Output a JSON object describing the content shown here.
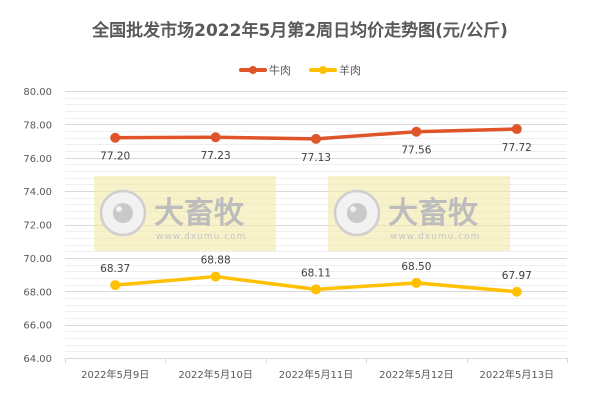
{
  "title": "全国批发市场2022年5月第2周日均价走势图(元/公斤)",
  "legend": [
    {
      "name": "牛肉",
      "color": "#E0542A"
    },
    {
      "name": "羊肉",
      "color": "#FFC000"
    }
  ],
  "watermark": {
    "brand": "大畜牧",
    "url": "www.dxumu.com"
  },
  "chart_data": {
    "type": "line",
    "title": "全国批发市场2022年5月第2周日均价走势图(元/公斤)",
    "xlabel": "",
    "ylabel": "",
    "categories": [
      "2022年5月9日",
      "2022年5月10日",
      "2022年5月11日",
      "2022年5月12日",
      "2022年5月13日"
    ],
    "series": [
      {
        "name": "牛肉",
        "color": "#E0542A",
        "values": [
          77.2,
          77.23,
          77.13,
          77.56,
          77.72
        ],
        "labels": [
          "77.20",
          "77.23",
          "77.13",
          "77.56",
          "77.72"
        ],
        "label_position": "below"
      },
      {
        "name": "羊肉",
        "color": "#FFC000",
        "values": [
          68.37,
          68.88,
          68.11,
          68.5,
          67.97
        ],
        "labels": [
          "68.37",
          "68.88",
          "68.11",
          "68.50",
          "67.97"
        ],
        "label_position": "above"
      }
    ],
    "ylim": [
      64,
      80
    ],
    "yticks": [
      "80.00",
      "78.00",
      "76.00",
      "74.00",
      "72.00",
      "70.00",
      "68.00",
      "66.00",
      "64.00"
    ],
    "major_step": 2,
    "minor_step": 0.4,
    "grid": true,
    "legend_position": "top"
  }
}
